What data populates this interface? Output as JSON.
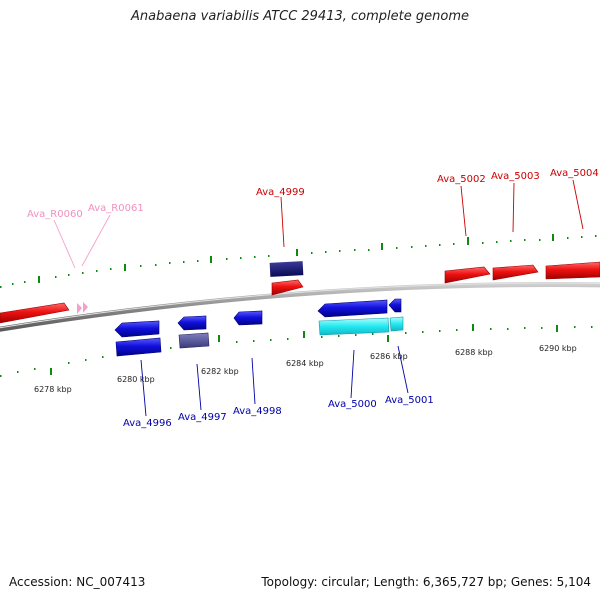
{
  "title": "Anabaena variabilis ATCC 29413, complete genome",
  "footer": {
    "accession": "Accession: NC_007413",
    "summary": "Topology: circular; Length: 6,365,727 bp; Genes: 5,104"
  },
  "colors": {
    "forward_gene": "#ee1111",
    "reverse_gene": "#1111dd",
    "rna": "#f4a0c8",
    "forward_label": "#cc0000",
    "reverse_label": "#0000aa",
    "rna_label": "#f090c0",
    "backbone": "#888888",
    "tick": "#118811"
  },
  "tick_labels": [
    "6278 kbp",
    "6280 kbp",
    "6282 kbp",
    "6284 kbp",
    "6286 kbp",
    "6288 kbp",
    "6290 kbp"
  ],
  "labels": {
    "forward": [
      "Ava_4999",
      "Ava_5002",
      "Ava_5003",
      "Ava_5004"
    ],
    "reverse": [
      "Ava_4996",
      "Ava_4997",
      "Ava_4998",
      "Ava_5000",
      "Ava_5001"
    ],
    "rna": [
      "Ava_R0060",
      "Ava_R0061"
    ]
  }
}
